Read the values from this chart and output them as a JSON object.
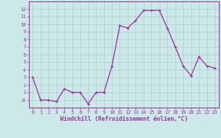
{
  "x": [
    0,
    1,
    2,
    3,
    4,
    5,
    6,
    7,
    8,
    9,
    10,
    11,
    12,
    13,
    14,
    15,
    16,
    17,
    18,
    19,
    20,
    21,
    22,
    23
  ],
  "y": [
    3,
    0,
    0,
    -0.2,
    1.5,
    1,
    1,
    -0.5,
    1,
    1,
    4.5,
    9.8,
    9.5,
    10.5,
    11.8,
    11.8,
    11.8,
    9.5,
    7,
    4.5,
    3.2,
    5.7,
    4.5,
    4.2
  ],
  "line_color": "#993399",
  "marker_color": "#993399",
  "bg_color": "#cce8e8",
  "grid_color": "#aacccc",
  "xlabel": "Windchill (Refroidissement éolien,°C)",
  "xlabel_color": "#993399",
  "ylim": [
    -1,
    13
  ],
  "xlim": [
    -0.5,
    23.5
  ],
  "yticks": [
    0,
    1,
    2,
    3,
    4,
    5,
    6,
    7,
    8,
    9,
    10,
    11,
    12
  ],
  "ytick_labels": [
    "-0",
    "1",
    "2",
    "3",
    "4",
    "5",
    "6",
    "7",
    "8",
    "9",
    "10",
    "11",
    "12"
  ],
  "xticks": [
    0,
    1,
    2,
    3,
    4,
    5,
    6,
    7,
    8,
    9,
    10,
    11,
    12,
    13,
    14,
    15,
    16,
    17,
    18,
    19,
    20,
    21,
    22,
    23
  ],
  "tick_color": "#993399",
  "axis_color": "#993399",
  "marker_size": 2,
  "line_width": 1.0,
  "font_size_ticks": 5.0,
  "font_size_xlabel": 6.0
}
